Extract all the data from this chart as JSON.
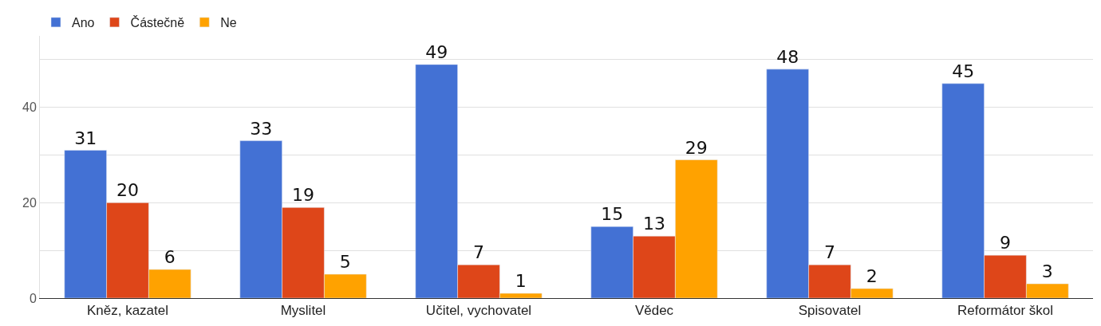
{
  "chart_data": {
    "type": "bar",
    "categories": [
      "Kněz, kazatel",
      "Myslitel",
      "Učitel, vychovatel",
      "Vědec",
      "Spisovatel",
      "Reformátor škol"
    ],
    "series": [
      {
        "name": "Ano",
        "color": "#4371d4",
        "values": [
          31,
          33,
          49,
          15,
          48,
          45
        ]
      },
      {
        "name": "Částečně",
        "color": "#de4619",
        "values": [
          20,
          19,
          7,
          13,
          7,
          9
        ]
      },
      {
        "name": "Ne",
        "color": "#ffa200",
        "values": [
          6,
          5,
          1,
          29,
          2,
          3
        ]
      }
    ],
    "ylim": [
      0,
      55
    ],
    "yticks": [
      0,
      {
        "value": 10,
        "label": null
      },
      20,
      {
        "value": 30,
        "label": null
      },
      40,
      {
        "value": 50,
        "label": null
      }
    ],
    "grid": "y",
    "legend": "top left",
    "data_labels": true
  }
}
